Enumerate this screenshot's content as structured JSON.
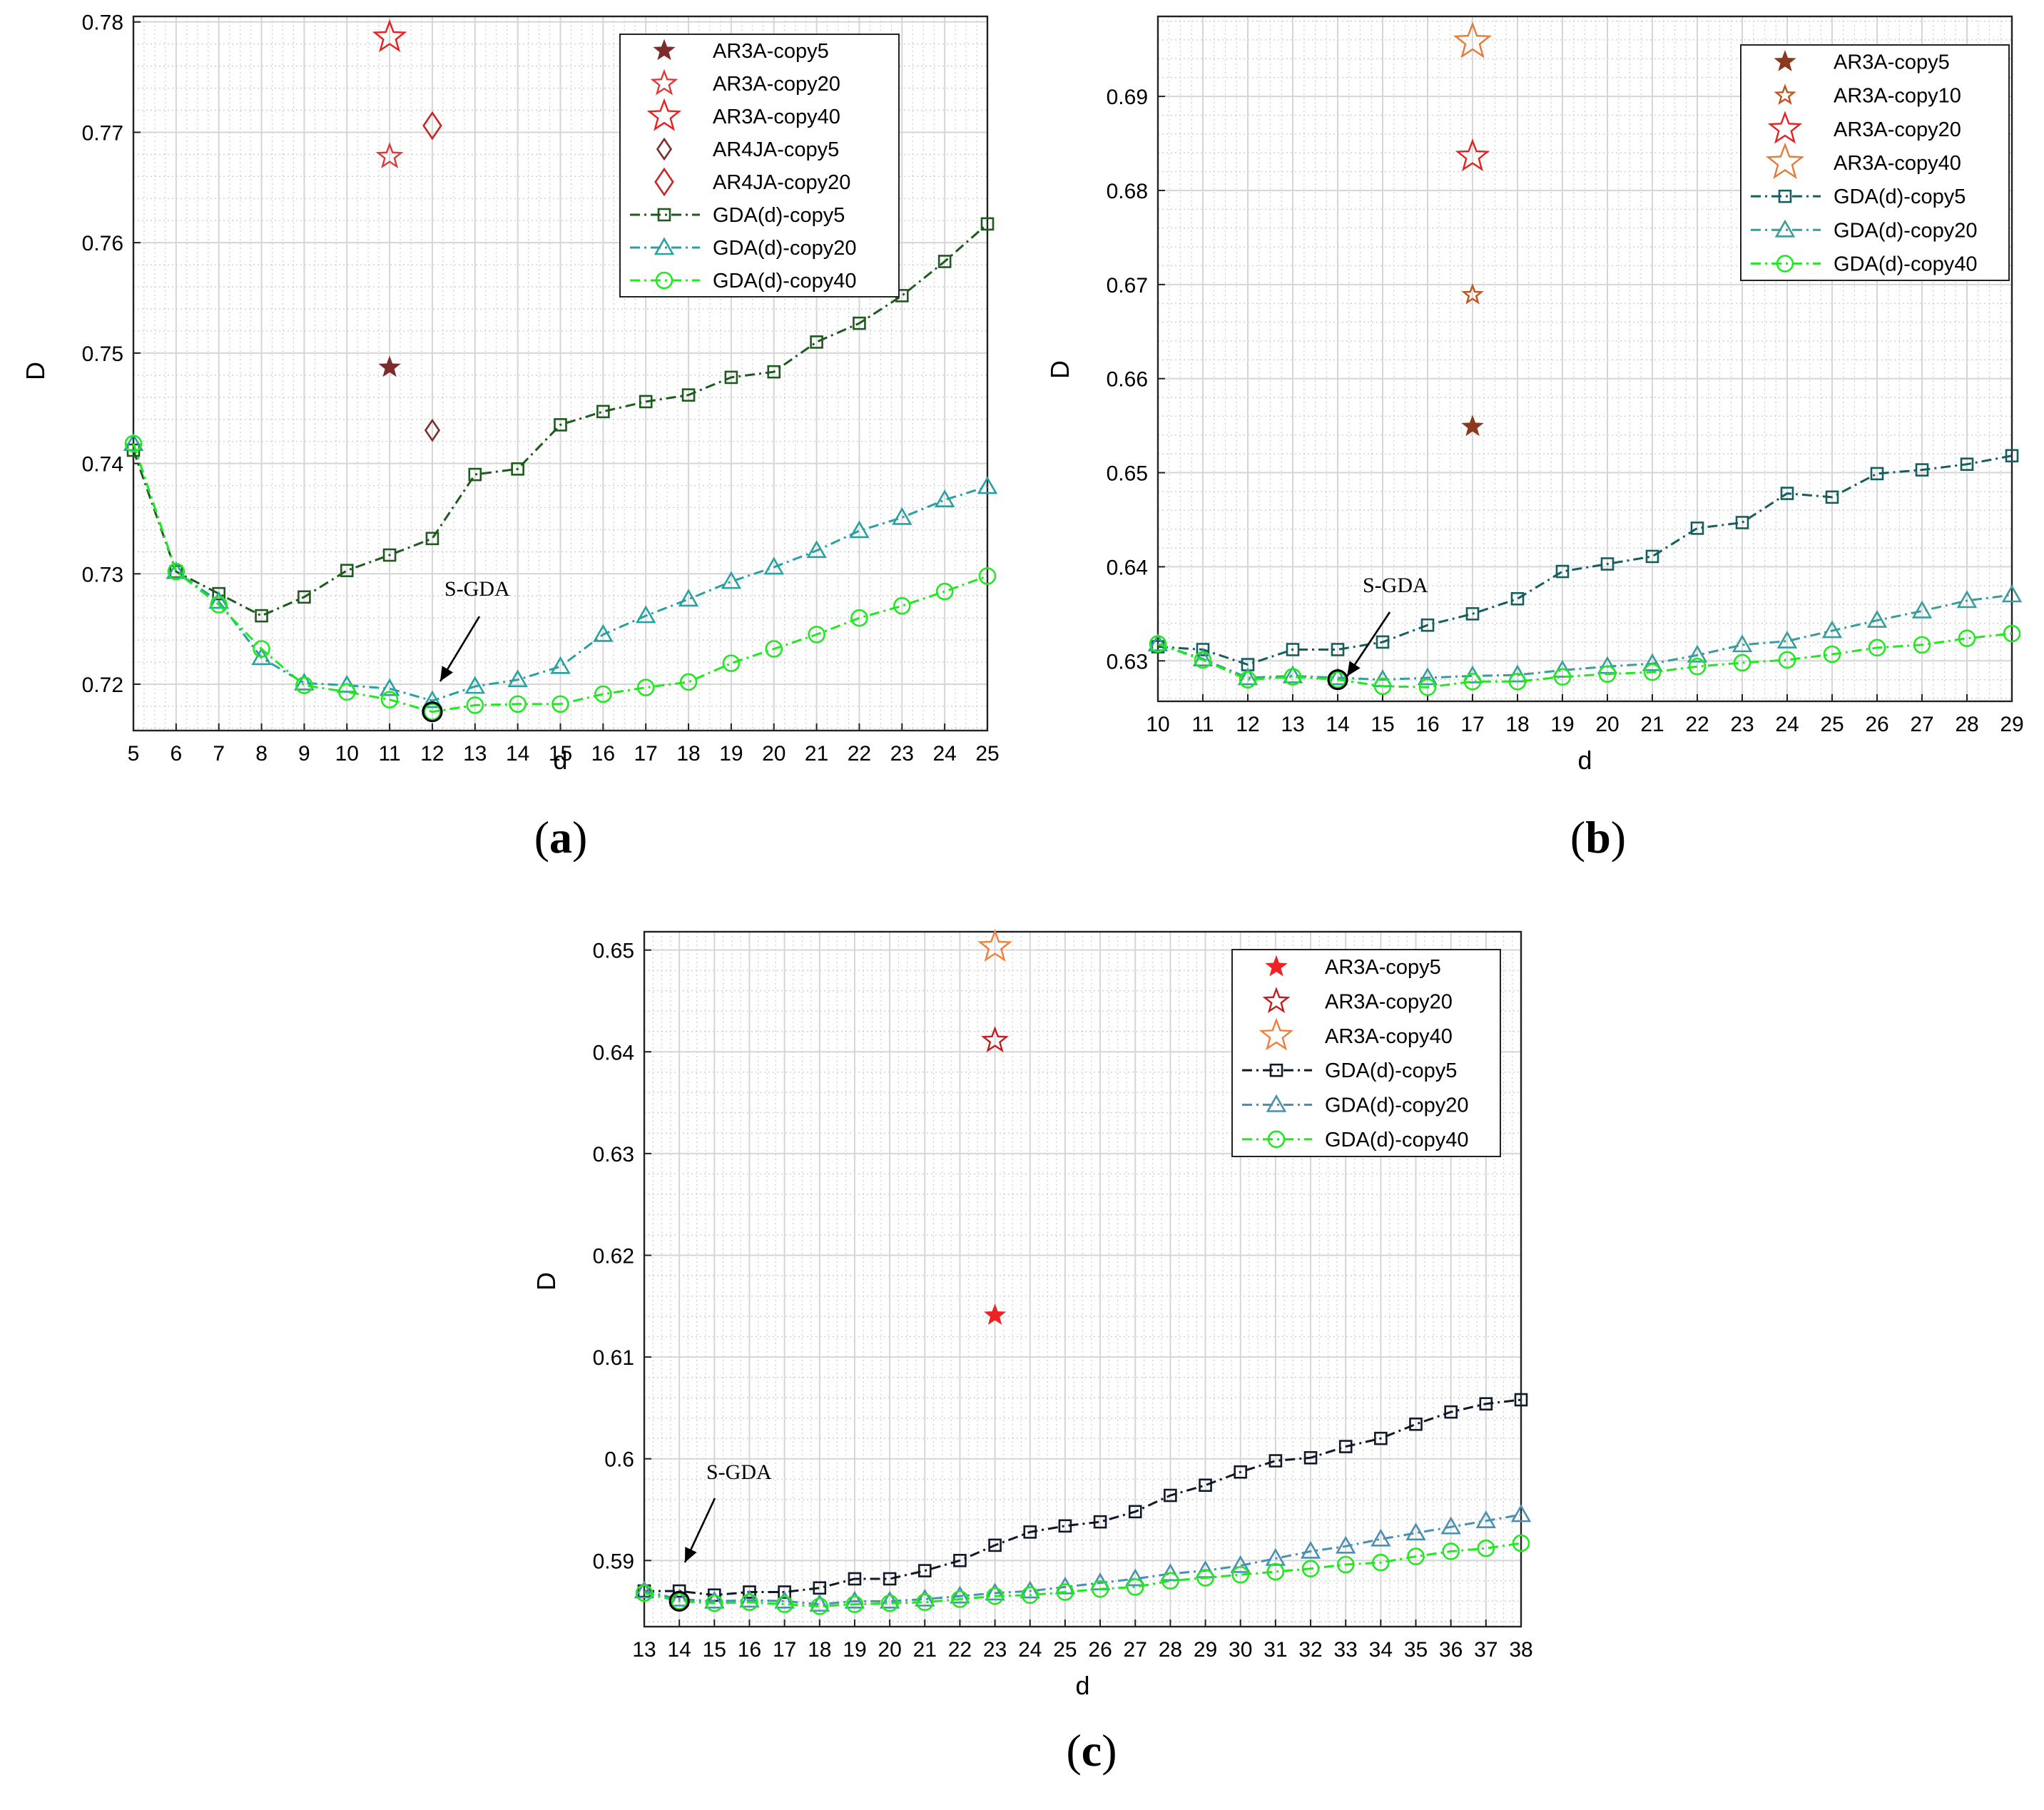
{
  "chart_data": [
    {
      "type": "line",
      "panel": "(a)",
      "xlabel": "d",
      "ylabel": "D",
      "xlim": [
        5,
        25
      ],
      "ylim": [
        0.7158,
        0.7805
      ],
      "xticks": [
        5,
        6,
        7,
        8,
        9,
        10,
        11,
        12,
        13,
        14,
        15,
        16,
        17,
        18,
        19,
        20,
        21,
        22,
        23,
        24,
        25
      ],
      "yticks": [
        0.72,
        0.73,
        0.74,
        0.75,
        0.76,
        0.77,
        0.78
      ],
      "ytick_labels": [
        "0.72",
        "0.73",
        "0.74",
        "0.75",
        "0.76",
        "0.77",
        "0.78"
      ],
      "x": [
        5,
        6,
        7,
        8,
        9,
        10,
        11,
        12,
        13,
        14,
        15,
        16,
        17,
        18,
        19,
        20,
        21,
        22,
        23,
        24,
        25
      ],
      "series": [
        {
          "name": "GDA(d)-copy5",
          "color": "#1e5a1e",
          "marker": "square",
          "dash": "14 6 3 6",
          "values": [
            0.7412,
            0.7302,
            0.7282,
            0.7262,
            0.7279,
            0.7303,
            0.7317,
            0.7332,
            0.739,
            0.7395,
            0.7435,
            0.7447,
            0.7456,
            0.7462,
            0.7478,
            0.7483,
            0.751,
            0.7527,
            0.7552,
            0.7583,
            0.7617
          ]
        },
        {
          "name": "GDA(d)-copy20",
          "color": "#2aa1a1",
          "marker": "triangle",
          "dash": "14 6 3 6",
          "values": [
            0.7418,
            0.7302,
            0.7275,
            0.7224,
            0.7201,
            0.7199,
            0.7196,
            0.7185,
            0.7198,
            0.7204,
            0.7216,
            0.7245,
            0.7262,
            0.7277,
            0.7293,
            0.7306,
            0.7321,
            0.7339,
            0.7351,
            0.7367,
            0.7379
          ]
        },
        {
          "name": "GDA(d)-copy40",
          "color": "#22e822",
          "marker": "circle",
          "dash": "14 6 3 6",
          "values": [
            0.7418,
            0.7302,
            0.7272,
            0.7232,
            0.7199,
            0.7193,
            0.7186,
            0.7175,
            0.7181,
            0.7182,
            0.7182,
            0.7191,
            0.7197,
            0.7202,
            0.7219,
            0.7232,
            0.7245,
            0.726,
            0.7271,
            0.7284,
            0.7298
          ]
        }
      ],
      "points": [
        {
          "name": "AR3A-copy5",
          "x": 11,
          "y": 0.7487,
          "marker": "star",
          "size": "small",
          "filled": true,
          "color": "#7b2d2d"
        },
        {
          "name": "AR3A-copy20",
          "x": 11,
          "y": 0.7678,
          "marker": "star",
          "size": "medium",
          "filled": false,
          "color": "#d93b3b"
        },
        {
          "name": "AR3A-copy40",
          "x": 11,
          "y": 0.7786,
          "marker": "star",
          "size": "large",
          "filled": false,
          "color": "#ee1c1c"
        },
        {
          "name": "AR4JA-copy5",
          "x": 12,
          "y": 0.743,
          "marker": "diamond",
          "size": "small",
          "filled": false,
          "color": "#7b2d2d"
        },
        {
          "name": "AR4JA-copy20",
          "x": 12,
          "y": 0.7706,
          "marker": "diamond",
          "size": "medium",
          "filled": false,
          "color": "#c62828"
        }
      ],
      "legend_order": [
        "AR3A-copy5",
        "AR3A-copy20",
        "AR3A-copy40",
        "AR4JA-copy5",
        "AR4JA-copy20",
        "GDA(d)-copy5",
        "GDA(d)-copy20",
        "GDA(d)-copy40"
      ],
      "legend_position": "top-right",
      "annotation": {
        "text": "S-GDA",
        "x": 12,
        "y": 0.7175
      }
    },
    {
      "type": "line",
      "panel": "(b)",
      "xlabel": "d",
      "ylabel": "D",
      "xlim": [
        10,
        29
      ],
      "ylim": [
        0.6257,
        0.6985
      ],
      "xticks": [
        10,
        11,
        12,
        13,
        14,
        15,
        16,
        17,
        18,
        19,
        20,
        21,
        22,
        23,
        24,
        25,
        26,
        27,
        28,
        29
      ],
      "yticks": [
        0.63,
        0.64,
        0.65,
        0.66,
        0.67,
        0.68,
        0.69
      ],
      "ytick_labels": [
        "0.63",
        "0.64",
        "0.65",
        "0.66",
        "0.67",
        "0.68",
        "0.69"
      ],
      "x": [
        10,
        11,
        12,
        13,
        14,
        15,
        16,
        17,
        18,
        19,
        20,
        21,
        22,
        23,
        24,
        25,
        26,
        27,
        28,
        29
      ],
      "series": [
        {
          "name": "GDA(d)-copy5",
          "color": "#155e5e",
          "marker": "square",
          "dash": "14 6 3 6",
          "values": [
            0.6315,
            0.6312,
            0.6296,
            0.6312,
            0.6312,
            0.632,
            0.6338,
            0.635,
            0.6366,
            0.6395,
            0.6403,
            0.6411,
            0.6441,
            0.6447,
            0.6478,
            0.6474,
            0.6499,
            0.6503,
            0.6509,
            0.6518
          ]
        },
        {
          "name": "GDA(d)-copy20",
          "color": "#3a9c9c",
          "marker": "triangle",
          "dash": "14 6 3 6",
          "values": [
            0.6318,
            0.6302,
            0.6282,
            0.6284,
            0.6282,
            0.628,
            0.6282,
            0.6284,
            0.6285,
            0.629,
            0.6294,
            0.6297,
            0.6306,
            0.6317,
            0.6321,
            0.6332,
            0.6343,
            0.6353,
            0.6364,
            0.637
          ]
        },
        {
          "name": "GDA(d)-copy40",
          "color": "#22e822",
          "marker": "circle",
          "dash": "14 6 3 6",
          "values": [
            0.6318,
            0.6301,
            0.628,
            0.6283,
            0.628,
            0.6273,
            0.6272,
            0.6278,
            0.6278,
            0.6283,
            0.6286,
            0.6288,
            0.6294,
            0.6298,
            0.6301,
            0.6307,
            0.6314,
            0.6317,
            0.6324,
            0.6329
          ]
        }
      ],
      "points": [
        {
          "name": "AR3A-copy5",
          "x": 17,
          "y": 0.6549,
          "marker": "star",
          "size": "small",
          "filled": true,
          "color": "#8b3a1e"
        },
        {
          "name": "AR3A-copy10",
          "x": 17,
          "y": 0.6689,
          "marker": "star",
          "size": "small",
          "filled": false,
          "color": "#c4511a"
        },
        {
          "name": "AR3A-copy20",
          "x": 17,
          "y": 0.6836,
          "marker": "star",
          "size": "large",
          "filled": false,
          "color": "#e22222"
        },
        {
          "name": "AR3A-copy40",
          "x": 17,
          "y": 0.6958,
          "marker": "star",
          "size": "xlarge",
          "filled": false,
          "color": "#e37b3a"
        }
      ],
      "legend_order": [
        "AR3A-copy5",
        "AR3A-copy10",
        "AR3A-copy20",
        "AR3A-copy40",
        "GDA(d)-copy5",
        "GDA(d)-copy20",
        "GDA(d)-copy40"
      ],
      "legend_position": "top-right",
      "annotation": {
        "text": "S-GDA",
        "x": 14,
        "y": 0.628
      }
    },
    {
      "type": "line",
      "panel": "(c)",
      "xlabel": "d",
      "ylabel": "D",
      "xlim": [
        13,
        38
      ],
      "ylim": [
        0.5835,
        0.6518
      ],
      "xticks": [
        13,
        14,
        15,
        16,
        17,
        18,
        19,
        20,
        21,
        22,
        23,
        24,
        25,
        26,
        27,
        28,
        29,
        30,
        31,
        32,
        33,
        34,
        35,
        36,
        37,
        38
      ],
      "yticks": [
        0.59,
        0.6,
        0.61,
        0.62,
        0.63,
        0.64,
        0.65
      ],
      "ytick_labels": [
        "0.59",
        "0.6",
        "0.61",
        "0.62",
        "0.63",
        "0.64",
        "0.65"
      ],
      "x": [
        13,
        14,
        15,
        16,
        17,
        18,
        19,
        20,
        21,
        22,
        23,
        24,
        25,
        26,
        27,
        28,
        29,
        30,
        31,
        32,
        33,
        34,
        35,
        36,
        37,
        38
      ],
      "series": [
        {
          "name": "GDA(d)-copy5",
          "color": "#111827",
          "marker": "square",
          "dash": "14 6 3 6",
          "values": [
            0.587,
            0.587,
            0.5866,
            0.5869,
            0.5869,
            0.5873,
            0.5882,
            0.5882,
            0.589,
            0.59,
            0.5915,
            0.5928,
            0.5934,
            0.5938,
            0.5948,
            0.5964,
            0.5974,
            0.5987,
            0.5998,
            0.6001,
            0.6012,
            0.602,
            0.6034,
            0.6046,
            0.6054,
            0.6058
          ]
        },
        {
          "name": "GDA(d)-copy20",
          "color": "#4a90b0",
          "marker": "triangle",
          "dash": "14 6 3 6",
          "values": [
            0.587,
            0.5862,
            0.586,
            0.5861,
            0.586,
            0.5857,
            0.586,
            0.586,
            0.5862,
            0.5865,
            0.5868,
            0.587,
            0.5874,
            0.5878,
            0.5882,
            0.5887,
            0.589,
            0.5895,
            0.5902,
            0.5909,
            0.5914,
            0.5921,
            0.5927,
            0.5933,
            0.5939,
            0.5945
          ]
        },
        {
          "name": "GDA(d)-copy40",
          "color": "#22e822",
          "marker": "circle",
          "dash": "14 6 3 6",
          "values": [
            0.5868,
            0.586,
            0.5858,
            0.5859,
            0.5857,
            0.5855,
            0.5857,
            0.5858,
            0.5859,
            0.5862,
            0.5865,
            0.5866,
            0.5869,
            0.5872,
            0.5874,
            0.588,
            0.5883,
            0.5886,
            0.5889,
            0.5892,
            0.5896,
            0.5898,
            0.5904,
            0.5909,
            0.5912,
            0.5917
          ]
        }
      ],
      "points": [
        {
          "name": "AR3A-copy5",
          "x": 23,
          "y": 0.6141,
          "marker": "star",
          "size": "small",
          "filled": true,
          "color": "#ee2222"
        },
        {
          "name": "AR3A-copy20",
          "x": 23,
          "y": 0.6411,
          "marker": "star",
          "size": "medium",
          "filled": false,
          "color": "#c01e1e"
        },
        {
          "name": "AR3A-copy40",
          "x": 23,
          "y": 0.6503,
          "marker": "star",
          "size": "large",
          "filled": false,
          "color": "#f07f3c"
        }
      ],
      "legend_order": [
        "AR3A-copy5",
        "AR3A-copy20",
        "AR3A-copy40",
        "GDA(d)-copy5",
        "GDA(d)-copy20",
        "GDA(d)-copy40"
      ],
      "legend_position": "top-right",
      "annotation": {
        "text": "S-GDA",
        "x": 14,
        "y": 0.586
      }
    }
  ]
}
